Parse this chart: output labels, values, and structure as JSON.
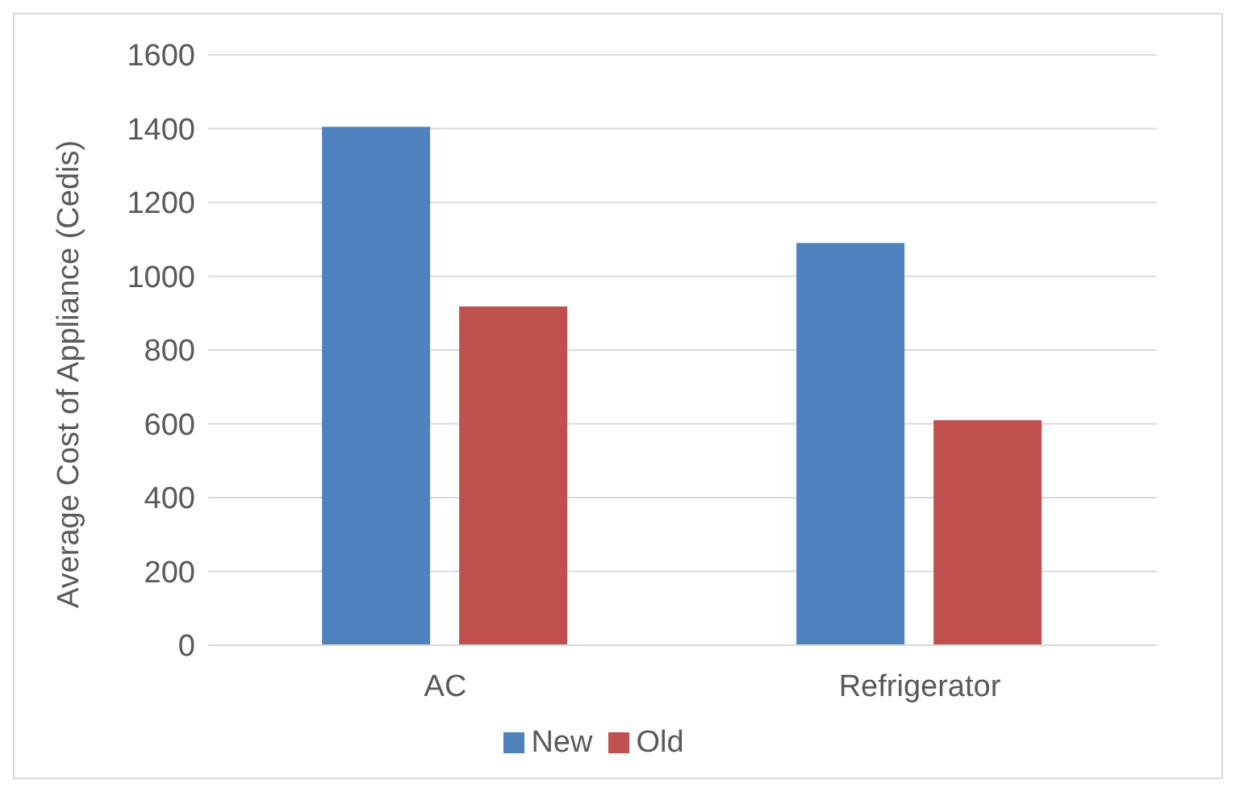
{
  "chart_data": {
    "type": "bar",
    "ylabel": "Average Cost of Appliance (Cedis)",
    "categories": [
      "AC",
      "Refrigerator"
    ],
    "series": [
      {
        "name": "New",
        "color": "#4f81bd",
        "values": [
          1405,
          1090
        ]
      },
      {
        "name": "Old",
        "color": "#c0504d",
        "values": [
          918,
          610
        ]
      }
    ],
    "ylim": [
      0,
      1600
    ],
    "yticks": [
      0,
      200,
      400,
      600,
      800,
      1000,
      1200,
      1400,
      1600
    ],
    "grid": "y",
    "legend": "bottom"
  }
}
